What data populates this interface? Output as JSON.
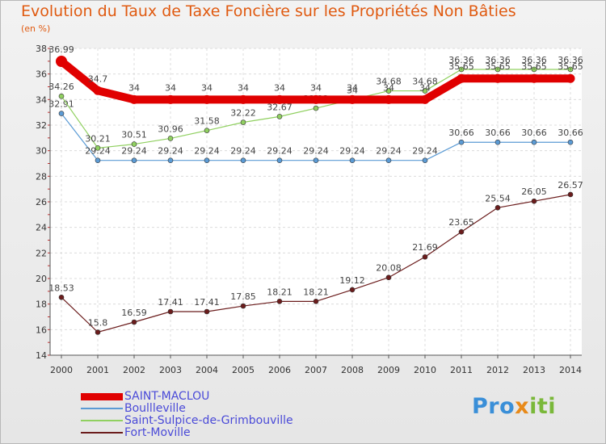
{
  "title": "Evolution du Taux de Taxe Foncière sur les Propriétés Non Bâties",
  "subtitle": "(en %)",
  "logo": {
    "p1": "Pro",
    "p2": "x",
    "p3": "iti"
  },
  "chart_data": {
    "type": "line",
    "title": "Evolution du Taux de Taxe Foncière sur les Propriétés Non Bâties",
    "ylabel": "(en %)",
    "xlabel": "",
    "ylim": [
      14,
      38
    ],
    "yticks": [
      14,
      16,
      18,
      20,
      22,
      24,
      26,
      28,
      30,
      32,
      34,
      36,
      38
    ],
    "grid": true,
    "legend": "bottom-left",
    "categories": [
      "2000",
      "2001",
      "2002",
      "2003",
      "2004",
      "2005",
      "2006",
      "2007",
      "2008",
      "2009",
      "2010",
      "2011",
      "2012",
      "2013",
      "2014"
    ],
    "series": [
      {
        "name": "Fort-Moville",
        "color": "#6b1c1c",
        "lineWidth": 1.2,
        "values": [
          18.53,
          15.8,
          16.59,
          17.41,
          17.41,
          17.85,
          18.21,
          18.21,
          19.12,
          20.08,
          21.69,
          23.65,
          25.54,
          26.05,
          26.57
        ],
        "labels": [
          "18.53",
          "15.8",
          "16.59",
          "17.41",
          "17.41",
          "17.85",
          "18.21",
          "18.21",
          "19.12",
          "20.08",
          "21.69",
          "23.65",
          "25.54",
          "26.05",
          "26.57"
        ]
      },
      {
        "name": "Boullleville",
        "color": "#5b9bd5",
        "lineWidth": 1.2,
        "values": [
          32.91,
          29.24,
          29.24,
          29.24,
          29.24,
          29.24,
          29.24,
          29.24,
          29.24,
          29.24,
          29.24,
          30.66,
          30.66,
          30.66,
          30.66
        ],
        "labels": [
          "32.91",
          "29.24",
          "29.24",
          "29.24",
          "29.24",
          "29.24",
          "29.24",
          "29.24",
          "29.24",
          "29.24",
          "29.24",
          "30.66",
          "30.66",
          "30.66",
          "30.66"
        ]
      },
      {
        "name": "Saint-Sulpice-de-Grimbouville",
        "color": "#90d060",
        "lineWidth": 1.2,
        "values": [
          34.26,
          30.21,
          30.51,
          30.96,
          31.58,
          32.22,
          32.67,
          33.32,
          34,
          34.68,
          34.68,
          36.36,
          36.36,
          36.36,
          36.36
        ],
        "labels": [
          "34.26",
          "30.21",
          "30.51",
          "30.96",
          "31.58",
          "32.22",
          "32.67",
          "33.32",
          "34",
          "34.68",
          "34.68",
          "36.36",
          "36.36",
          "36.36",
          "36.36"
        ]
      },
      {
        "name": "SAINT-MACLOU",
        "color": "#e00000",
        "lineWidth": 10,
        "values": [
          36.99,
          34.7,
          34,
          34,
          34,
          34,
          34,
          34,
          34,
          34,
          34,
          35.65,
          35.65,
          35.65,
          35.65
        ],
        "labels": [
          "36.99",
          "34.7",
          "34",
          "34",
          "34",
          "34",
          "34",
          "34",
          "34",
          "34",
          "34",
          "35.65",
          "35.65",
          "35.65",
          "35.65"
        ]
      }
    ]
  }
}
